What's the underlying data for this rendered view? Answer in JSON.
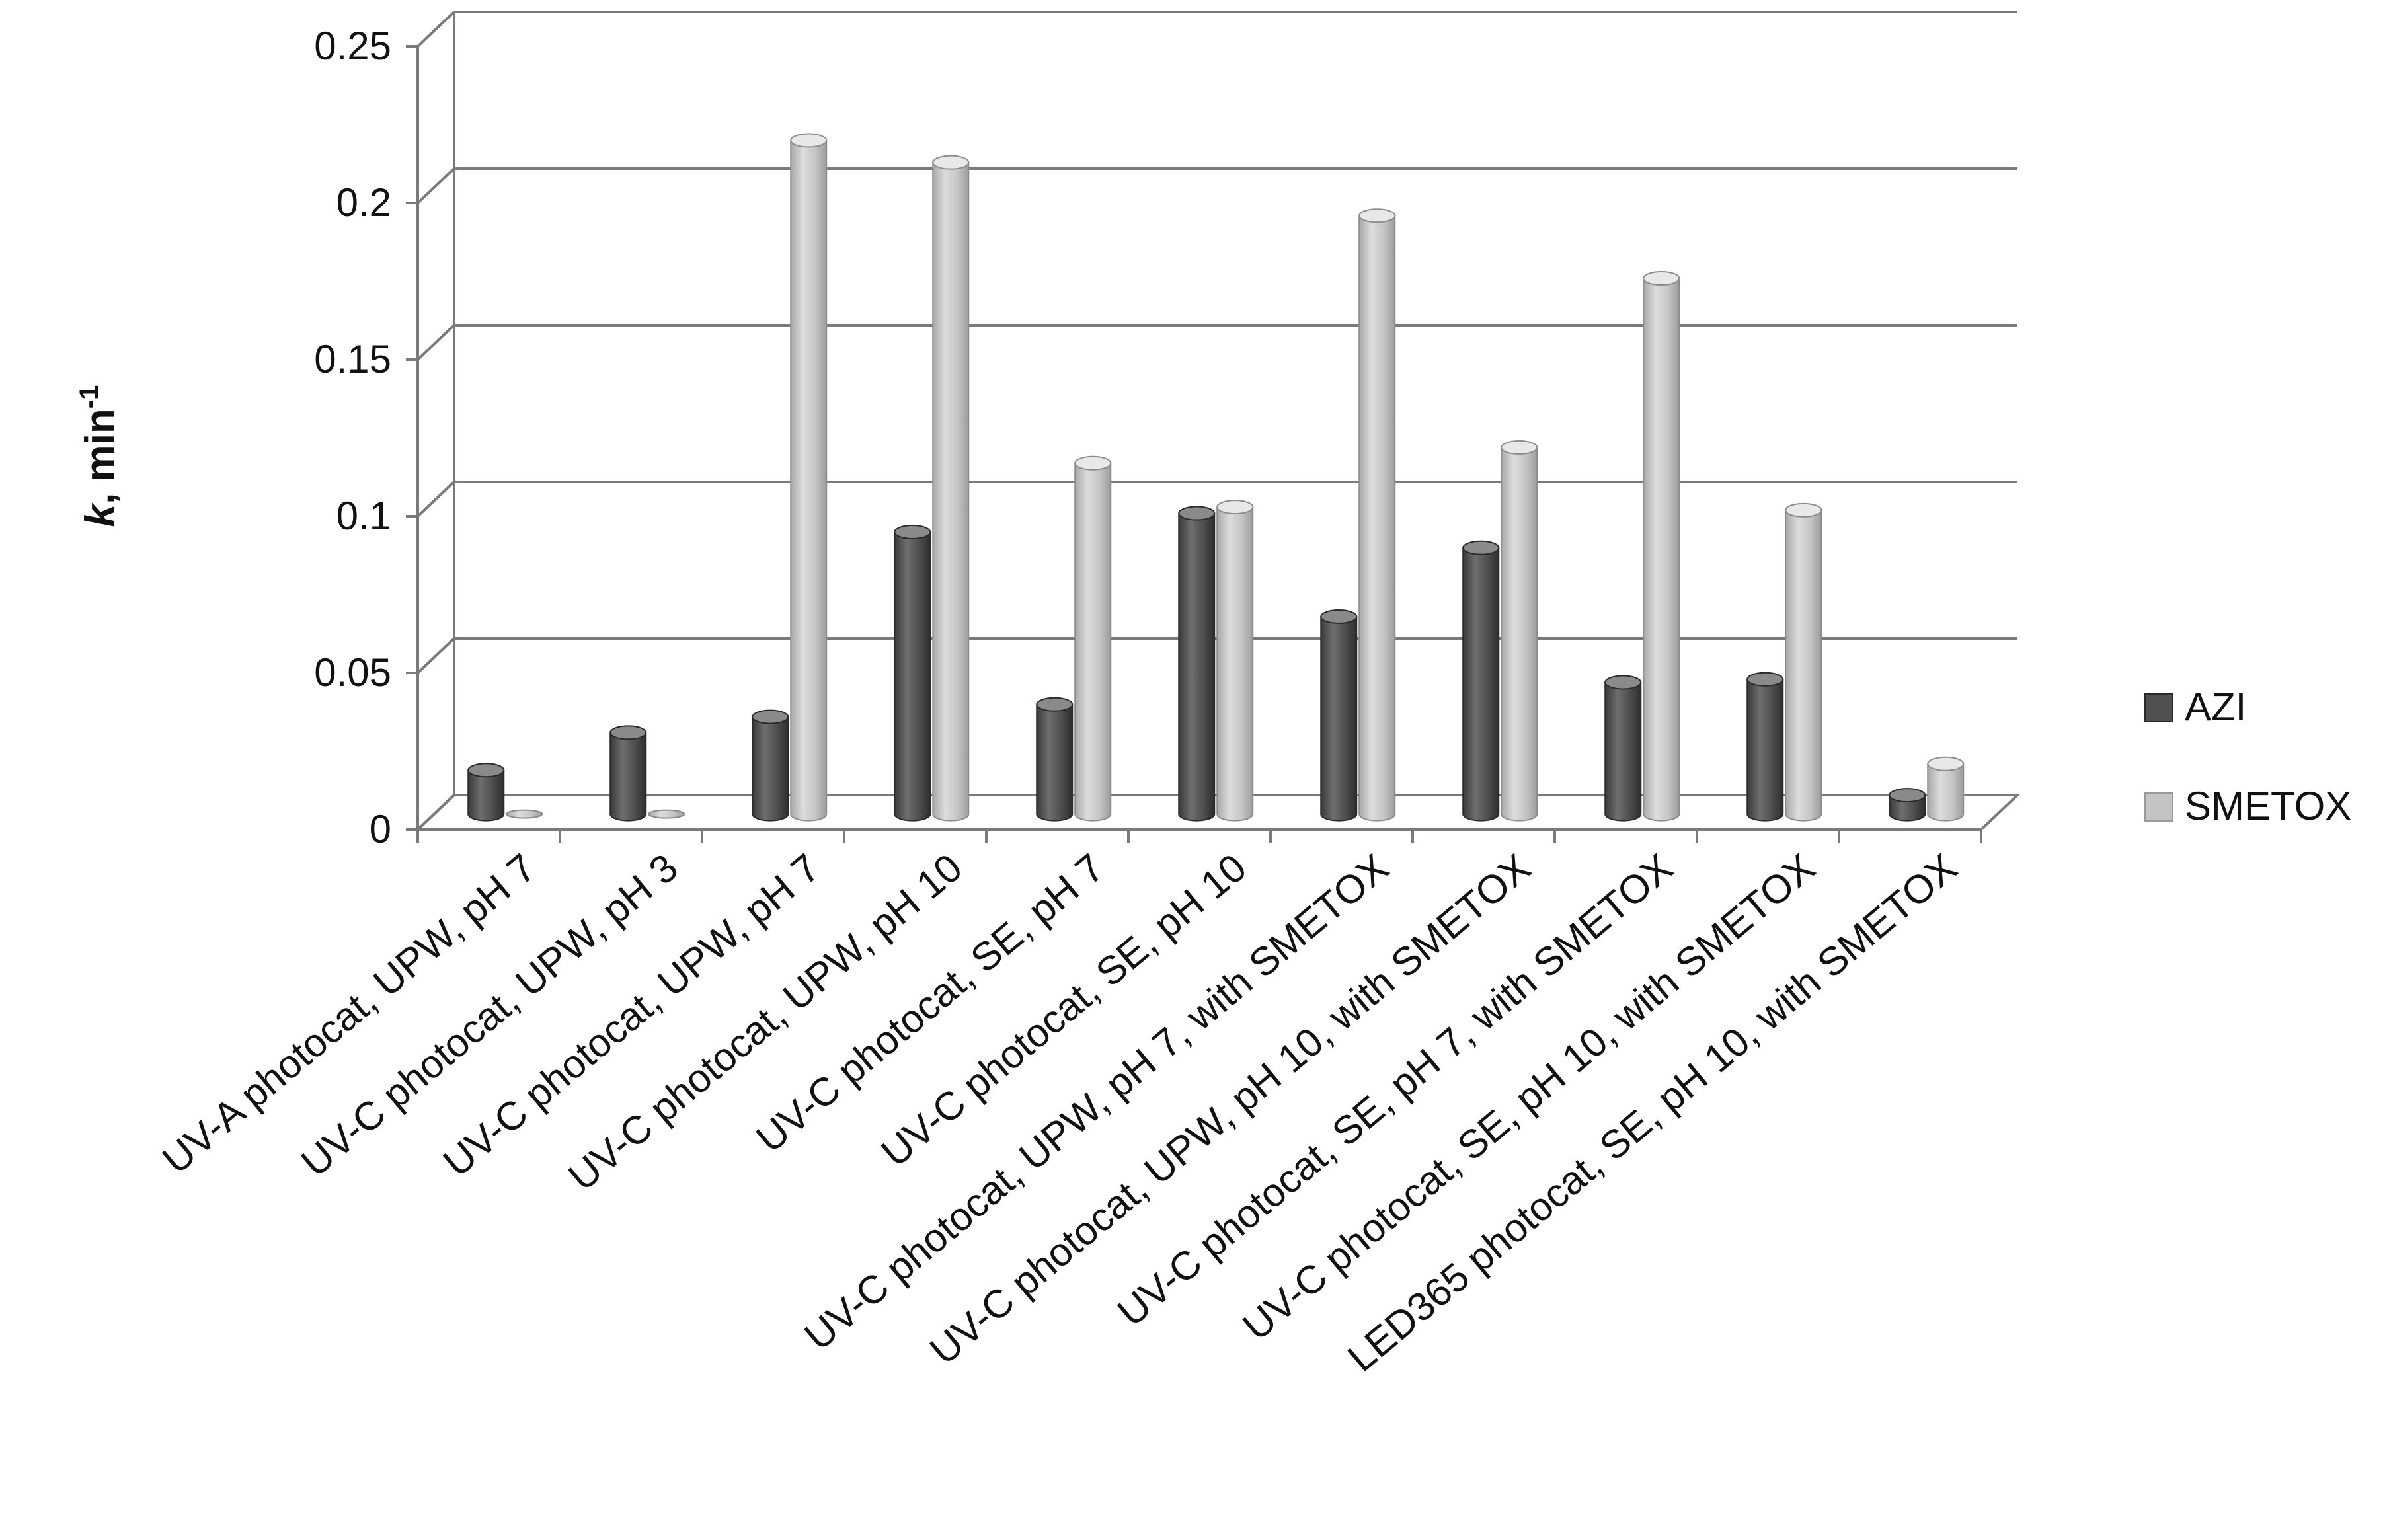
{
  "chart_data": {
    "type": "bar",
    "title": "",
    "xlabel": "",
    "ylabel": {
      "italic": "k",
      "main": ", min",
      "sup": "-1"
    },
    "ylim": [
      0,
      0.25
    ],
    "yticks": [
      "0",
      "0.05",
      "0.1",
      "0.15",
      "0.2",
      "0.25"
    ],
    "ytick_values": [
      0,
      0.05,
      0.1,
      0.15,
      0.2,
      0.25
    ],
    "grid": true,
    "legend_position": "right",
    "categories": [
      "UV-A photocat, UPW, pH 7",
      "UV-C photocat, UPW, pH 3",
      "UV-C photocat, UPW, pH 7",
      "UV-C photocat, UPW, pH 10",
      "UV-C photocat, SE, pH 7",
      "UV-C photocat, SE, pH 10",
      "UV-C photocat, UPW, pH 7, with SMETOX",
      "UV-C photocat, UPW, pH 10, with SMETOX",
      "UV-C photocat, SE, pH 7, with SMETOX",
      "UV-C photocat, SE, pH 10, with SMETOX",
      "LED365 photocat, SE, pH 10, with SMETOX"
    ],
    "series": [
      {
        "name": "AZI",
        "color": "#505050",
        "values": [
          0.014,
          0.026,
          0.031,
          0.09,
          0.035,
          0.096,
          0.063,
          0.085,
          0.042,
          0.043,
          0.006
        ]
      },
      {
        "name": "SMETOX",
        "color": "#bdbdbd",
        "values": [
          0,
          0,
          0.215,
          0.208,
          0.112,
          0.098,
          0.191,
          0.117,
          0.171,
          0.097,
          0.016
        ]
      }
    ]
  }
}
